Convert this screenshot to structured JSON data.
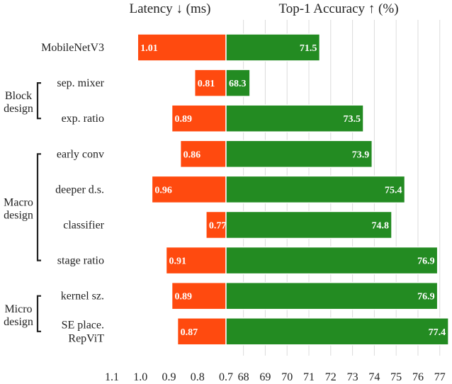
{
  "chart_data": {
    "type": "bar",
    "orientation": "horizontal",
    "categories": [
      "MobileNetV3",
      "sep. mixer",
      "exp. ratio",
      "early conv",
      "deeper d.s.",
      "classifier",
      "stage ratio",
      "kernel sz.",
      "SE place.\nRepViT"
    ],
    "groups": [
      {
        "label": "Block design",
        "lines": [
          "Block",
          "design"
        ],
        "from": 1,
        "to": 2
      },
      {
        "label": "Macro design",
        "lines": [
          "Macro",
          "design"
        ],
        "from": 3,
        "to": 6
      },
      {
        "label": "Micro design",
        "lines": [
          "Micro",
          "design"
        ],
        "from": 7,
        "to": 8
      }
    ],
    "panels": [
      {
        "name": "latency",
        "title": "Latency ↓ (ms)",
        "xlim": [
          1.1,
          0.7
        ],
        "ticks": [
          "1.1",
          "1.0",
          "0.9",
          "0.8",
          "0.7"
        ],
        "tick_values": [
          1.1,
          1.0,
          0.9,
          0.8,
          0.7
        ],
        "color": "#ff4a0f",
        "values": [
          1.01,
          0.81,
          0.89,
          0.86,
          0.96,
          0.77,
          0.91,
          0.89,
          0.87
        ],
        "labels": [
          "1.01",
          "0.81",
          "0.89",
          "0.86",
          "0.96",
          "0.77",
          "0.91",
          "0.89",
          "0.87"
        ],
        "grid": false
      },
      {
        "name": "accuracy",
        "title": "Top-1 Accuracy ↑ (%)",
        "xlim": [
          67.2,
          77.3
        ],
        "ticks": [
          "68",
          "69",
          "70",
          "71",
          "72",
          "73",
          "74",
          "75",
          "76",
          "77"
        ],
        "tick_values": [
          68,
          69,
          70,
          71,
          72,
          73,
          74,
          75,
          76,
          77
        ],
        "color": "#238b22",
        "values": [
          71.5,
          68.3,
          73.5,
          73.9,
          75.4,
          74.8,
          76.9,
          76.9,
          77.4
        ],
        "labels": [
          "71.5",
          "68.3",
          "73.5",
          "73.9",
          "75.4",
          "74.8",
          "76.9",
          "76.9",
          "77.4"
        ],
        "grid": true
      }
    ]
  }
}
